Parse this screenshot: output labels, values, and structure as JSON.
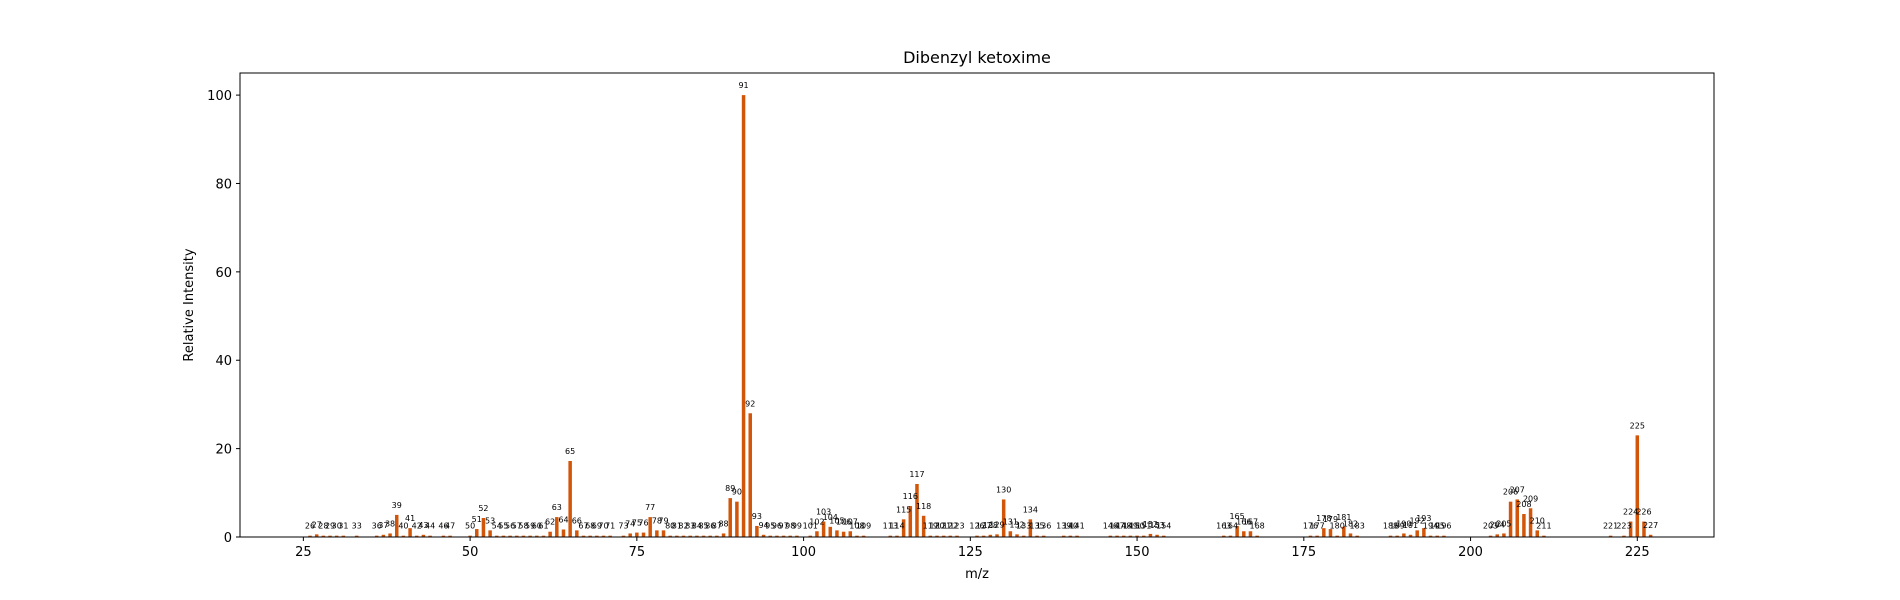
{
  "chart_data": {
    "type": "bar",
    "title": "Dibenzyl ketoxime",
    "xlabel": "m/z",
    "ylabel": "Relative Intensity",
    "xlim": [
      15.5,
      236.5
    ],
    "ylim": [
      0,
      105
    ],
    "xticks": [
      25,
      50,
      75,
      100,
      125,
      150,
      175,
      200,
      225
    ],
    "yticks": [
      0,
      20,
      40,
      60,
      80,
      100
    ],
    "grid": false,
    "bar_color": "#d2560a",
    "points": [
      {
        "x": 26,
        "y": 0.3
      },
      {
        "x": 27,
        "y": 0.6
      },
      {
        "x": 28,
        "y": 0.3
      },
      {
        "x": 29,
        "y": 0.3
      },
      {
        "x": 30,
        "y": 0.3
      },
      {
        "x": 31,
        "y": 0.3
      },
      {
        "x": 33,
        "y": 0.3
      },
      {
        "x": 36,
        "y": 0.3
      },
      {
        "x": 37,
        "y": 0.5
      },
      {
        "x": 38,
        "y": 0.8
      },
      {
        "x": 39,
        "y": 5.0
      },
      {
        "x": 40,
        "y": 0.3
      },
      {
        "x": 41,
        "y": 2.0
      },
      {
        "x": 42,
        "y": 0.3
      },
      {
        "x": 43,
        "y": 0.5
      },
      {
        "x": 44,
        "y": 0.3
      },
      {
        "x": 46,
        "y": 0.3
      },
      {
        "x": 47,
        "y": 0.3
      },
      {
        "x": 50,
        "y": 0.3
      },
      {
        "x": 51,
        "y": 1.8
      },
      {
        "x": 52,
        "y": 4.3
      },
      {
        "x": 53,
        "y": 1.5
      },
      {
        "x": 54,
        "y": 0.3
      },
      {
        "x": 55,
        "y": 0.3
      },
      {
        "x": 56,
        "y": 0.3
      },
      {
        "x": 57,
        "y": 0.3
      },
      {
        "x": 58,
        "y": 0.3
      },
      {
        "x": 59,
        "y": 0.3
      },
      {
        "x": 60,
        "y": 0.3
      },
      {
        "x": 61,
        "y": 0.3
      },
      {
        "x": 62,
        "y": 1.2
      },
      {
        "x": 63,
        "y": 4.5
      },
      {
        "x": 64,
        "y": 1.7
      },
      {
        "x": 65,
        "y": 17.2
      },
      {
        "x": 66,
        "y": 1.5
      },
      {
        "x": 67,
        "y": 0.3
      },
      {
        "x": 68,
        "y": 0.3
      },
      {
        "x": 69,
        "y": 0.3
      },
      {
        "x": 70,
        "y": 0.3
      },
      {
        "x": 71,
        "y": 0.3
      },
      {
        "x": 73,
        "y": 0.3
      },
      {
        "x": 74,
        "y": 0.8
      },
      {
        "x": 75,
        "y": 1.0
      },
      {
        "x": 76,
        "y": 1.0
      },
      {
        "x": 77,
        "y": 4.5
      },
      {
        "x": 78,
        "y": 1.5
      },
      {
        "x": 79,
        "y": 1.5
      },
      {
        "x": 80,
        "y": 0.3
      },
      {
        "x": 81,
        "y": 0.3
      },
      {
        "x": 82,
        "y": 0.3
      },
      {
        "x": 83,
        "y": 0.3
      },
      {
        "x": 84,
        "y": 0.3
      },
      {
        "x": 85,
        "y": 0.3
      },
      {
        "x": 86,
        "y": 0.3
      },
      {
        "x": 87,
        "y": 0.3
      },
      {
        "x": 88,
        "y": 0.8
      },
      {
        "x": 89,
        "y": 8.8
      },
      {
        "x": 90,
        "y": 8.0
      },
      {
        "x": 91,
        "y": 100.0
      },
      {
        "x": 92,
        "y": 28.0
      },
      {
        "x": 93,
        "y": 2.5
      },
      {
        "x": 94,
        "y": 0.5
      },
      {
        "x": 95,
        "y": 0.3
      },
      {
        "x": 96,
        "y": 0.3
      },
      {
        "x": 97,
        "y": 0.3
      },
      {
        "x": 98,
        "y": 0.3
      },
      {
        "x": 99,
        "y": 0.3
      },
      {
        "x": 101,
        "y": 0.3
      },
      {
        "x": 102,
        "y": 1.3
      },
      {
        "x": 103,
        "y": 3.5
      },
      {
        "x": 104,
        "y": 2.3
      },
      {
        "x": 105,
        "y": 1.5
      },
      {
        "x": 106,
        "y": 1.2
      },
      {
        "x": 107,
        "y": 1.3
      },
      {
        "x": 108,
        "y": 0.3
      },
      {
        "x": 109,
        "y": 0.3
      },
      {
        "x": 113,
        "y": 0.3
      },
      {
        "x": 114,
        "y": 0.3
      },
      {
        "x": 115,
        "y": 4.0
      },
      {
        "x": 116,
        "y": 7.0
      },
      {
        "x": 117,
        "y": 12.0
      },
      {
        "x": 118,
        "y": 4.8
      },
      {
        "x": 119,
        "y": 0.3
      },
      {
        "x": 120,
        "y": 0.3
      },
      {
        "x": 121,
        "y": 0.3
      },
      {
        "x": 122,
        "y": 0.3
      },
      {
        "x": 123,
        "y": 0.3
      },
      {
        "x": 126,
        "y": 0.3
      },
      {
        "x": 127,
        "y": 0.3
      },
      {
        "x": 128,
        "y": 0.5
      },
      {
        "x": 129,
        "y": 0.6
      },
      {
        "x": 130,
        "y": 8.5
      },
      {
        "x": 131,
        "y": 1.3
      },
      {
        "x": 132,
        "y": 0.6
      },
      {
        "x": 133,
        "y": 0.3
      },
      {
        "x": 134,
        "y": 4.0
      },
      {
        "x": 135,
        "y": 0.3
      },
      {
        "x": 136,
        "y": 0.3
      },
      {
        "x": 139,
        "y": 0.3
      },
      {
        "x": 140,
        "y": 0.3
      },
      {
        "x": 141,
        "y": 0.3
      },
      {
        "x": 146,
        "y": 0.3
      },
      {
        "x": 147,
        "y": 0.3
      },
      {
        "x": 148,
        "y": 0.3
      },
      {
        "x": 149,
        "y": 0.3
      },
      {
        "x": 150,
        "y": 0.3
      },
      {
        "x": 151,
        "y": 0.3
      },
      {
        "x": 152,
        "y": 0.7
      },
      {
        "x": 153,
        "y": 0.5
      },
      {
        "x": 154,
        "y": 0.3
      },
      {
        "x": 163,
        "y": 0.3
      },
      {
        "x": 164,
        "y": 0.3
      },
      {
        "x": 165,
        "y": 2.5
      },
      {
        "x": 166,
        "y": 1.3
      },
      {
        "x": 167,
        "y": 1.3
      },
      {
        "x": 168,
        "y": 0.3
      },
      {
        "x": 176,
        "y": 0.3
      },
      {
        "x": 177,
        "y": 0.3
      },
      {
        "x": 178,
        "y": 2.0
      },
      {
        "x": 179,
        "y": 1.8
      },
      {
        "x": 180,
        "y": 0.3
      },
      {
        "x": 181,
        "y": 2.3
      },
      {
        "x": 182,
        "y": 0.8
      },
      {
        "x": 183,
        "y": 0.3
      },
      {
        "x": 188,
        "y": 0.3
      },
      {
        "x": 189,
        "y": 0.3
      },
      {
        "x": 190,
        "y": 0.8
      },
      {
        "x": 191,
        "y": 0.5
      },
      {
        "x": 192,
        "y": 1.5
      },
      {
        "x": 193,
        "y": 2.0
      },
      {
        "x": 194,
        "y": 0.3
      },
      {
        "x": 195,
        "y": 0.3
      },
      {
        "x": 196,
        "y": 0.3
      },
      {
        "x": 203,
        "y": 0.3
      },
      {
        "x": 204,
        "y": 0.6
      },
      {
        "x": 205,
        "y": 0.8
      },
      {
        "x": 206,
        "y": 8.0
      },
      {
        "x": 207,
        "y": 8.5
      },
      {
        "x": 208,
        "y": 5.2
      },
      {
        "x": 209,
        "y": 6.5
      },
      {
        "x": 210,
        "y": 1.5
      },
      {
        "x": 211,
        "y": 0.3
      },
      {
        "x": 221,
        "y": 0.3
      },
      {
        "x": 223,
        "y": 0.3
      },
      {
        "x": 224,
        "y": 3.5
      },
      {
        "x": 225,
        "y": 23.0
      },
      {
        "x": 226,
        "y": 3.5
      },
      {
        "x": 227,
        "y": 0.5
      }
    ]
  }
}
